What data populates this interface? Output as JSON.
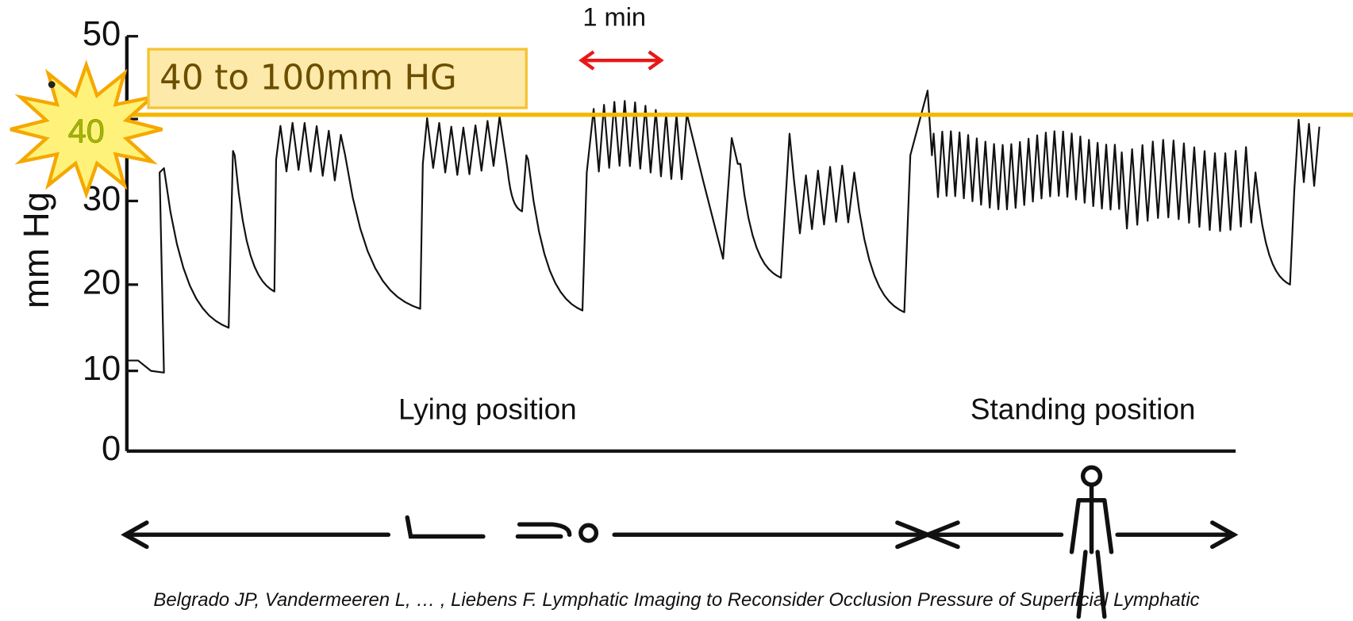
{
  "annotation": {
    "bullet": "•",
    "text": "40 to 100mm HG"
  },
  "scale_label": "1 min",
  "axis": {
    "title": "mm Hg",
    "ticks": [
      "50",
      "40",
      "30",
      "20",
      "10",
      "0"
    ]
  },
  "labels": [
    "Lying position",
    "Standing position"
  ],
  "citation": "Belgrado JP, Vandermeeren L, … , Liebens F. Lymphatic Imaging to Reconsider Occlusion Pressure of Superficial Lymphatic"
}
